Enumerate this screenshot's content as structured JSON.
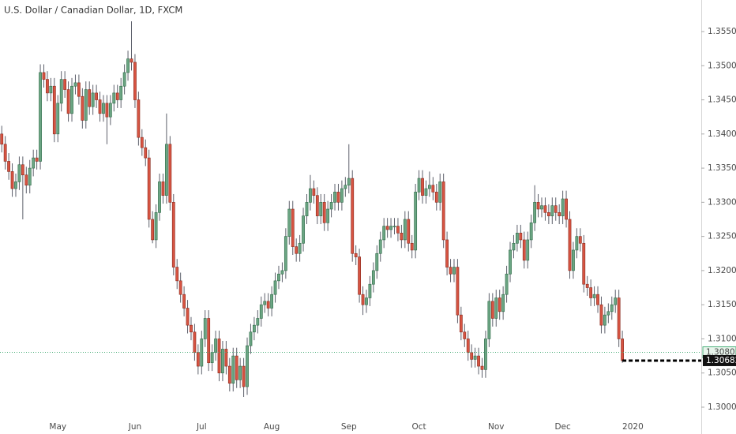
{
  "chart_data": {
    "type": "candlestick",
    "title": "U.S. Dollar / Canadian Dollar, 1D, FXCM",
    "categories": [
      null,
      null,
      null,
      null,
      null,
      null,
      null,
      null,
      null,
      null,
      null,
      null,
      null,
      null,
      null,
      null,
      "May",
      null,
      null,
      null,
      null,
      null,
      null,
      null,
      null,
      null,
      null,
      null,
      null,
      null,
      null,
      null,
      null,
      null,
      null,
      null,
      null,
      null,
      "Jun",
      null,
      null,
      null,
      null,
      null,
      null,
      null,
      null,
      null,
      null,
      null,
      null,
      null,
      null,
      null,
      null,
      null,
      null,
      "Jul",
      null,
      null,
      null,
      null,
      null,
      null,
      null,
      null,
      null,
      null,
      null,
      null,
      null,
      null,
      null,
      null,
      null,
      null,
      null,
      "Aug",
      null,
      null,
      null,
      null,
      null,
      null,
      null,
      null,
      null,
      null,
      null,
      null,
      null,
      null,
      null,
      null,
      null,
      null,
      null,
      null,
      null,
      "Sep",
      null,
      null,
      null,
      null,
      null,
      null,
      null,
      null,
      null,
      null,
      null,
      null,
      null,
      null,
      null,
      null,
      null,
      null,
      null,
      "Oct",
      null,
      null,
      null,
      null,
      null,
      null,
      null,
      null,
      null,
      null,
      null,
      null,
      null,
      null,
      null,
      null,
      null,
      null,
      null,
      null,
      null,
      "Nov",
      null,
      null,
      null,
      null,
      null,
      null,
      null,
      null,
      null,
      null,
      null,
      null,
      null,
      null,
      null,
      null,
      null,
      null,
      "Dec",
      null,
      null,
      null,
      null,
      null,
      null,
      null,
      null,
      null,
      null,
      null,
      null,
      null,
      null,
      null,
      null,
      null,
      null,
      null,
      "2020",
      null,
      null,
      null,
      null,
      null,
      null,
      null,
      null,
      null,
      null,
      null,
      null,
      null,
      null,
      null,
      null,
      null,
      null,
      null
    ],
    "open": [
      1.34,
      1.3385,
      1.336,
      1.3345,
      1.332,
      1.333,
      1.3355,
      1.334,
      1.3325,
      1.335,
      1.3365,
      1.336,
      1.349,
      1.348,
      1.346,
      1.347,
      1.34,
      1.3445,
      1.348,
      1.3465,
      1.343,
      1.347,
      1.3475,
      1.3455,
      1.342,
      1.3465,
      1.344,
      1.346,
      1.345,
      1.343,
      1.3445,
      1.3425,
      1.3445,
      1.346,
      1.345,
      1.347,
      1.349,
      1.351,
      1.3505,
      1.345,
      1.3395,
      1.338,
      1.3365,
      1.3275,
      1.3245,
      1.3285,
      1.333,
      1.331,
      1.3385,
      1.33,
      1.3205,
      1.3185,
      1.3165,
      1.3145,
      1.312,
      1.311,
      1.308,
      1.306,
      1.31,
      1.313,
      1.3065,
      1.308,
      1.31,
      1.305,
      1.3085,
      1.306,
      1.3035,
      1.3075,
      1.304,
      1.306,
      1.303,
      1.309,
      1.311,
      1.312,
      1.313,
      1.315,
      1.3155,
      1.3145,
      1.3165,
      1.3185,
      1.3195,
      1.32,
      1.325,
      1.329,
      1.3235,
      1.3225,
      1.324,
      1.328,
      1.33,
      1.332,
      1.331,
      1.328,
      1.33,
      1.327,
      1.329,
      1.33,
      1.3315,
      1.33,
      1.332,
      1.3325,
      1.3335,
      1.3225,
      1.322,
      1.3165,
      1.315,
      1.316,
      1.318,
      1.32,
      1.3225,
      1.3245,
      1.3265,
      1.326,
      1.3265,
      1.3265,
      1.3255,
      1.3245,
      1.3275,
      1.324,
      1.323,
      1.3315,
      1.3335,
      1.331,
      1.332,
      1.3325,
      1.3315,
      1.33,
      1.333,
      1.3245,
      1.3205,
      1.3195,
      1.3205,
      1.3135,
      1.311,
      1.31,
      1.308,
      1.307,
      1.3075,
      1.306,
      1.3055,
      1.31,
      1.3155,
      1.313,
      1.316,
      1.314,
      1.3165,
      1.3195,
      1.323,
      1.324,
      1.3255,
      1.3245,
      1.3215,
      1.3245,
      1.327,
      1.33,
      1.329,
      1.3295,
      1.3285,
      1.328,
      1.3295,
      1.3285,
      1.328,
      1.3305,
      1.3275,
      1.32,
      1.323,
      1.325,
      1.324,
      1.318,
      1.3175,
      1.316,
      1.3165,
      1.315,
      1.312,
      1.3135,
      1.314,
      1.315,
      1.316,
      1.31,
      null,
      null,
      null,
      null,
      null,
      null,
      null,
      null,
      null,
      null,
      null,
      null,
      null,
      null,
      null,
      null,
      null,
      null,
      null,
      null,
      null,
      null
    ],
    "high": [
      1.3412,
      1.3397,
      1.3372,
      1.3357,
      1.3342,
      1.3367,
      1.3367,
      1.3352,
      1.3362,
      1.3377,
      1.3377,
      1.3502,
      1.3502,
      1.3492,
      1.3482,
      1.3482,
      1.3457,
      1.3492,
      1.3492,
      1.3477,
      1.3482,
      1.3487,
      1.3487,
      1.3467,
      1.3477,
      1.3477,
      1.3472,
      1.3472,
      1.3462,
      1.3457,
      1.3457,
      1.3457,
      1.3472,
      1.3472,
      1.3482,
      1.3502,
      1.3522,
      1.3565,
      1.3517,
      1.3462,
      1.3407,
      1.3392,
      1.3377,
      1.3287,
      1.3297,
      1.3342,
      1.3342,
      1.343,
      1.3397,
      1.3312,
      1.3217,
      1.3197,
      1.3177,
      1.3157,
      1.3132,
      1.3122,
      1.3092,
      1.3112,
      1.3142,
      1.3142,
      1.3092,
      1.3112,
      1.3112,
      1.3097,
      1.3097,
      1.3072,
      1.3087,
      1.3087,
      1.3072,
      1.3072,
      1.3102,
      1.3122,
      1.3132,
      1.3142,
      1.3162,
      1.3167,
      1.3167,
      1.3177,
      1.3197,
      1.3207,
      1.3212,
      1.3262,
      1.3302,
      1.3302,
      1.3247,
      1.3252,
      1.3292,
      1.3312,
      1.334,
      1.3332,
      1.3322,
      1.3312,
      1.3312,
      1.3302,
      1.3312,
      1.3327,
      1.3327,
      1.3332,
      1.3337,
      1.3385,
      1.3347,
      1.3237,
      1.3232,
      1.3177,
      1.3172,
      1.3192,
      1.3212,
      1.3237,
      1.3257,
      1.3277,
      1.3277,
      1.3277,
      1.3277,
      1.3277,
      1.3267,
      1.3287,
      1.3287,
      1.3252,
      1.3327,
      1.3347,
      1.3347,
      1.3332,
      1.3345,
      1.3337,
      1.3327,
      1.3342,
      1.3342,
      1.3257,
      1.3217,
      1.3217,
      1.3217,
      1.3147,
      1.3122,
      1.3112,
      1.3092,
      1.3087,
      1.3087,
      1.3072,
      1.3112,
      1.3167,
      1.3167,
      1.3172,
      1.3172,
      1.3177,
      1.3207,
      1.3242,
      1.3252,
      1.3267,
      1.3267,
      1.3257,
      1.3257,
      1.3282,
      1.3325,
      1.3312,
      1.3307,
      1.3307,
      1.3297,
      1.3307,
      1.3307,
      1.3297,
      1.3317,
      1.3317,
      1.3287,
      1.3242,
      1.3262,
      1.3262,
      1.3252,
      1.3192,
      1.3187,
      1.3177,
      1.3177,
      1.3162,
      1.3147,
      1.3152,
      1.3162,
      1.3172,
      1.3172,
      1.3112,
      null,
      null,
      null,
      null,
      null,
      null,
      null,
      null,
      null,
      null,
      null,
      null,
      null,
      null,
      null,
      null,
      null,
      null,
      null,
      null,
      null,
      null
    ],
    "low": [
      1.3373,
      1.3348,
      1.3333,
      1.3308,
      1.3308,
      1.3318,
      1.3275,
      1.3313,
      1.3313,
      1.3338,
      1.3348,
      1.3348,
      1.3468,
      1.3448,
      1.3448,
      1.3388,
      1.3388,
      1.3433,
      1.3453,
      1.3418,
      1.3418,
      1.3458,
      1.3443,
      1.3408,
      1.3408,
      1.3428,
      1.3428,
      1.3438,
      1.3418,
      1.3418,
      1.3385,
      1.3413,
      1.3433,
      1.3438,
      1.3438,
      1.3458,
      1.3478,
      1.3493,
      1.3438,
      1.3383,
      1.3368,
      1.3353,
      1.3263,
      1.324,
      1.3233,
      1.3273,
      1.3298,
      1.3298,
      1.3288,
      1.3193,
      1.3173,
      1.3153,
      1.3133,
      1.3108,
      1.3098,
      1.3068,
      1.3048,
      1.3048,
      1.3088,
      1.3053,
      1.3053,
      1.3068,
      1.3038,
      1.3038,
      1.3048,
      1.3023,
      1.3023,
      1.3028,
      1.3028,
      1.3015,
      1.3018,
      1.3078,
      1.3098,
      1.3108,
      1.3118,
      1.3138,
      1.3133,
      1.3133,
      1.3153,
      1.3173,
      1.3183,
      1.3188,
      1.3238,
      1.3223,
      1.3213,
      1.3213,
      1.3228,
      1.3268,
      1.3288,
      1.3298,
      1.3268,
      1.3268,
      1.3258,
      1.3258,
      1.3278,
      1.3288,
      1.3288,
      1.3288,
      1.3308,
      1.3313,
      1.3213,
      1.3208,
      1.3153,
      1.3135,
      1.3138,
      1.3148,
      1.3168,
      1.3188,
      1.3213,
      1.3233,
      1.3248,
      1.3248,
      1.3253,
      1.3243,
      1.3233,
      1.3233,
      1.3228,
      1.3218,
      1.3218,
      1.3303,
      1.3298,
      1.3298,
      1.3308,
      1.3303,
      1.3288,
      1.3288,
      1.3233,
      1.3193,
      1.3183,
      1.3183,
      1.3123,
      1.3098,
      1.3088,
      1.3068,
      1.3058,
      1.3058,
      1.3048,
      1.3043,
      1.3043,
      1.3088,
      1.3118,
      1.3118,
      1.3128,
      1.3128,
      1.3153,
      1.3183,
      1.3218,
      1.3228,
      1.3233,
      1.3203,
      1.3203,
      1.3233,
      1.3258,
      1.3278,
      1.3278,
      1.3273,
      1.3268,
      1.3268,
      1.3273,
      1.3268,
      1.3268,
      1.3263,
      1.3188,
      1.3188,
      1.3218,
      1.3228,
      1.3168,
      1.3163,
      1.3148,
      1.3148,
      1.3138,
      1.3108,
      1.3108,
      1.3123,
      1.3128,
      1.3138,
      1.3088,
      1.3065,
      null,
      null,
      null,
      null,
      null,
      null,
      null,
      null,
      null,
      null,
      null,
      null,
      null,
      null,
      null,
      null,
      null,
      null,
      null,
      null,
      null,
      null
    ],
    "close": [
      1.3385,
      1.336,
      1.3345,
      1.332,
      1.333,
      1.3355,
      1.334,
      1.3325,
      1.335,
      1.3365,
      1.336,
      1.349,
      1.348,
      1.346,
      1.347,
      1.34,
      1.3445,
      1.348,
      1.3465,
      1.343,
      1.347,
      1.3475,
      1.3455,
      1.342,
      1.3465,
      1.344,
      1.346,
      1.345,
      1.343,
      1.3445,
      1.3425,
      1.3445,
      1.346,
      1.345,
      1.347,
      1.349,
      1.351,
      1.3505,
      1.345,
      1.3395,
      1.338,
      1.3365,
      1.3275,
      1.3245,
      1.3285,
      1.333,
      1.331,
      1.3385,
      1.33,
      1.3205,
      1.3185,
      1.3165,
      1.3145,
      1.312,
      1.311,
      1.308,
      1.306,
      1.31,
      1.313,
      1.3065,
      1.308,
      1.31,
      1.305,
      1.3085,
      1.306,
      1.3035,
      1.3075,
      1.304,
      1.306,
      1.303,
      1.309,
      1.311,
      1.312,
      1.313,
      1.315,
      1.3155,
      1.3145,
      1.3165,
      1.3185,
      1.3195,
      1.32,
      1.325,
      1.329,
      1.3235,
      1.3225,
      1.324,
      1.328,
      1.33,
      1.332,
      1.331,
      1.328,
      1.33,
      1.327,
      1.329,
      1.33,
      1.3315,
      1.33,
      1.332,
      1.3325,
      1.3335,
      1.3225,
      1.322,
      1.3165,
      1.315,
      1.316,
      1.318,
      1.32,
      1.3225,
      1.3245,
      1.3265,
      1.326,
      1.3265,
      1.3265,
      1.3255,
      1.3245,
      1.3275,
      1.324,
      1.323,
      1.3315,
      1.3335,
      1.331,
      1.332,
      1.3325,
      1.3315,
      1.33,
      1.333,
      1.3245,
      1.3205,
      1.3195,
      1.3205,
      1.3135,
      1.311,
      1.31,
      1.308,
      1.307,
      1.3075,
      1.306,
      1.3055,
      1.31,
      1.3155,
      1.313,
      1.316,
      1.314,
      1.3165,
      1.3195,
      1.323,
      1.324,
      1.3255,
      1.3245,
      1.3215,
      1.3245,
      1.327,
      1.33,
      1.329,
      1.3295,
      1.3285,
      1.328,
      1.3295,
      1.3285,
      1.328,
      1.3305,
      1.3275,
      1.32,
      1.323,
      1.325,
      1.324,
      1.318,
      1.3175,
      1.316,
      1.3165,
      1.315,
      1.312,
      1.3135,
      1.314,
      1.315,
      1.316,
      1.31,
      1.30682,
      null,
      null,
      null,
      null,
      null,
      null,
      null,
      null,
      null,
      null,
      null,
      null,
      null,
      null,
      null,
      null,
      null,
      null,
      null,
      null,
      null,
      null
    ],
    "up_color": "#6ba583",
    "down_color": "#d75442",
    "wick_color": "#5d606b",
    "ylim": [
      1.29607,
      1.35962
    ],
    "yticks": [
      {
        "value": 1.3,
        "label": "1.30000"
      },
      {
        "value": 1.305,
        "label": "1.30500"
      },
      {
        "value": 1.31,
        "label": "1.31000"
      },
      {
        "value": 1.315,
        "label": "1.31500"
      },
      {
        "value": 1.32,
        "label": "1.32000"
      },
      {
        "value": 1.325,
        "label": "1.32500"
      },
      {
        "value": 1.33,
        "label": "1.33000"
      },
      {
        "value": 1.335,
        "label": "1.33500"
      },
      {
        "value": 1.34,
        "label": "1.34000"
      },
      {
        "value": 1.345,
        "label": "1.34500"
      },
      {
        "value": 1.35,
        "label": "1.35000"
      },
      {
        "value": 1.355,
        "label": "1.35500"
      }
    ],
    "grid": false,
    "reference_price": 1.30803,
    "reference_color": "#4caf7a",
    "last_price": 1.30682
  }
}
